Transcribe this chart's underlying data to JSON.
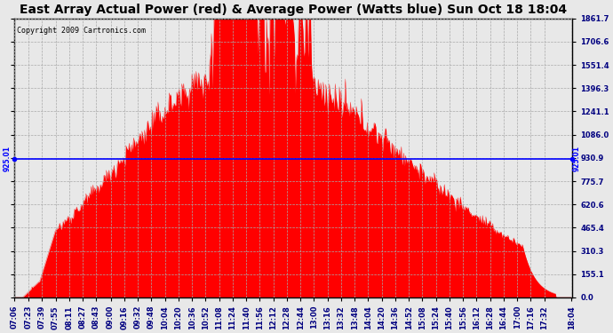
{
  "title": "East Array Actual Power (red) & Average Power (Watts blue) Sun Oct 18 18:04",
  "copyright": "Copyright 2009 Cartronics.com",
  "avg_line_y": 925.01,
  "avg_label": "925.01",
  "y_max": 1861.7,
  "y_min": 0.0,
  "y_ticks": [
    0.0,
    155.1,
    310.3,
    465.4,
    620.6,
    775.7,
    930.9,
    1086.0,
    1241.1,
    1396.3,
    1551.4,
    1706.6,
    1861.7
  ],
  "x_tick_labels": [
    "07:06",
    "07:23",
    "07:39",
    "07:55",
    "08:11",
    "08:27",
    "08:43",
    "09:00",
    "09:16",
    "09:32",
    "09:48",
    "10:04",
    "10:20",
    "10:36",
    "10:52",
    "11:08",
    "11:24",
    "11:40",
    "11:56",
    "12:12",
    "12:28",
    "12:44",
    "13:00",
    "13:16",
    "13:32",
    "13:48",
    "14:04",
    "14:20",
    "14:36",
    "14:52",
    "15:08",
    "15:24",
    "15:40",
    "15:56",
    "16:12",
    "16:28",
    "16:44",
    "17:00",
    "17:16",
    "17:32",
    "18:04"
  ],
  "background_color": "#e8e8e8",
  "plot_bg_color": "#e8e8e8",
  "fill_color": "#ff0000",
  "line_color": "#ff0000",
  "avg_color": "#0000ff",
  "grid_color": "#aaaaaa",
  "title_fontsize": 10,
  "tick_fontsize": 6,
  "copyright_fontsize": 6
}
